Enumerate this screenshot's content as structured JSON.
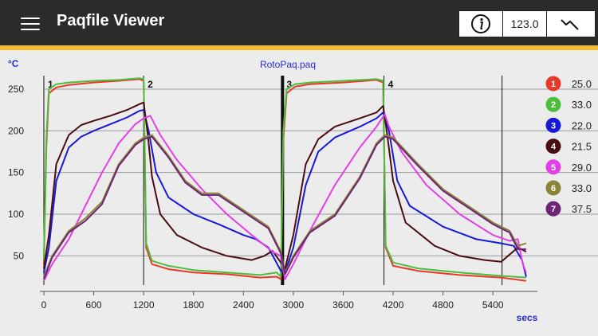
{
  "app": {
    "title": "Paqfile Viewer",
    "toolbar_value": "123.0"
  },
  "colors": {
    "header_bg": "#2b2b2b",
    "accent": "#f3bd2e"
  },
  "icons": {
    "menu": "hamburger-icon",
    "info": "info-icon",
    "trend": "trend-line-icon"
  },
  "chart_data": {
    "type": "line",
    "title": "RotoPaq.paq",
    "xlabel": "secs",
    "ylabel": "°C",
    "xlim": [
      0,
      5820
    ],
    "ylim": [
      15,
      270
    ],
    "x_ticks": [
      0,
      600,
      1200,
      1800,
      2400,
      3000,
      3600,
      4200,
      4800,
      5400
    ],
    "y_ticks": [
      50,
      100,
      150,
      200,
      250
    ],
    "grid": true,
    "legend_position": "right",
    "markers": [
      {
        "label": "1",
        "x": 0
      },
      {
        "label": "2",
        "x": 1200
      },
      {
        "label": "3",
        "x": 2870
      },
      {
        "label": "4",
        "x": 4090
      },
      {
        "label": "",
        "x": 5510
      }
    ],
    "separator_x": 2870,
    "series": [
      {
        "name": "1",
        "color": "#e8382a",
        "value": "25.0",
        "x": [
          0,
          30,
          60,
          150,
          300,
          600,
          900,
          1150,
          1200,
          1230,
          1300,
          1500,
          1800,
          2200,
          2600,
          2800,
          2850,
          2880,
          2920,
          3020,
          3200,
          3600,
          4000,
          4080,
          4110,
          4200,
          4500,
          5000,
          5500,
          5800
        ],
        "y": [
          40,
          180,
          245,
          252,
          255,
          258,
          260,
          262,
          260,
          60,
          40,
          34,
          30,
          28,
          24,
          25,
          22,
          190,
          245,
          253,
          256,
          258,
          261,
          258,
          60,
          38,
          32,
          27,
          24,
          20
        ]
      },
      {
        "name": "2",
        "color": "#4dbd3d",
        "value": "33.0",
        "x": [
          0,
          30,
          60,
          150,
          300,
          600,
          900,
          1150,
          1200,
          1230,
          1300,
          1500,
          1800,
          2200,
          2600,
          2800,
          2850,
          2880,
          2920,
          3020,
          3200,
          3600,
          4000,
          4080,
          4110,
          4200,
          4500,
          5000,
          5500,
          5800
        ],
        "y": [
          45,
          190,
          250,
          256,
          258,
          260,
          261,
          263,
          262,
          65,
          44,
          38,
          33,
          30,
          27,
          30,
          25,
          200,
          250,
          256,
          258,
          260,
          262,
          260,
          62,
          42,
          35,
          30,
          26,
          24
        ]
      },
      {
        "name": "3",
        "color": "#1818d8",
        "value": "22.0",
        "x": [
          0,
          60,
          150,
          300,
          450,
          600,
          800,
          1000,
          1150,
          1200,
          1260,
          1350,
          1500,
          1800,
          2100,
          2400,
          2550,
          2700,
          2850,
          2900,
          3000,
          3150,
          3300,
          3500,
          3800,
          4000,
          4080,
          4150,
          4250,
          4400,
          4800,
          5200,
          5500,
          5650,
          5750,
          5800
        ],
        "y": [
          30,
          60,
          140,
          180,
          193,
          200,
          208,
          216,
          224,
          225,
          200,
          150,
          120,
          100,
          88,
          75,
          70,
          60,
          32,
          30,
          60,
          135,
          175,
          192,
          205,
          215,
          222,
          200,
          140,
          110,
          85,
          70,
          65,
          62,
          45,
          25
        ]
      },
      {
        "name": "4",
        "color": "#4a0d12",
        "value": "21.5",
        "x": [
          0,
          60,
          150,
          300,
          450,
          600,
          800,
          1000,
          1150,
          1200,
          1250,
          1300,
          1400,
          1600,
          1900,
          2200,
          2500,
          2650,
          2750,
          2850,
          2900,
          3000,
          3150,
          3300,
          3500,
          3800,
          4000,
          4080,
          4130,
          4200,
          4350,
          4700,
          5000,
          5300,
          5500,
          5700,
          5800
        ],
        "y": [
          35,
          75,
          160,
          195,
          207,
          212,
          218,
          225,
          232,
          234,
          195,
          145,
          100,
          75,
          60,
          50,
          45,
          50,
          56,
          42,
          35,
          75,
          160,
          190,
          205,
          215,
          222,
          230,
          195,
          140,
          90,
          62,
          50,
          45,
          43,
          60,
          55
        ]
      },
      {
        "name": "5",
        "color": "#e33ee8",
        "value": "29.0",
        "x": [
          0,
          100,
          300,
          500,
          700,
          900,
          1100,
          1200,
          1280,
          1400,
          1600,
          1900,
          2200,
          2500,
          2750,
          2850,
          2900,
          3000,
          3200,
          3500,
          3800,
          4000,
          4100,
          4150,
          4300,
          4600,
          5000,
          5400,
          5600,
          5700,
          5760,
          5800
        ],
        "y": [
          20,
          40,
          70,
          110,
          150,
          185,
          208,
          215,
          218,
          195,
          165,
          130,
          100,
          75,
          55,
          50,
          22,
          40,
          80,
          135,
          180,
          205,
          220,
          205,
          175,
          135,
          100,
          75,
          68,
          70,
          40,
          30
        ]
      },
      {
        "name": "6",
        "color": "#8a8536",
        "value": "33.0",
        "x": [
          0,
          100,
          300,
          500,
          700,
          900,
          1100,
          1200,
          1300,
          1500,
          1700,
          1900,
          2100,
          2400,
          2700,
          2850,
          2900,
          3000,
          3200,
          3500,
          3800,
          4000,
          4100,
          4200,
          4500,
          4800,
          5100,
          5400,
          5600,
          5700,
          5800
        ],
        "y": [
          25,
          50,
          80,
          95,
          115,
          160,
          185,
          192,
          195,
          170,
          140,
          125,
          125,
          105,
          85,
          55,
          30,
          50,
          80,
          100,
          145,
          185,
          195,
          192,
          160,
          130,
          110,
          90,
          80,
          62,
          65
        ]
      },
      {
        "name": "7",
        "color": "#6e2576",
        "value": "37.5",
        "x": [
          0,
          100,
          300,
          500,
          700,
          900,
          1100,
          1200,
          1300,
          1500,
          1700,
          1900,
          2100,
          2400,
          2700,
          2850,
          2900,
          3000,
          3200,
          3500,
          3800,
          4000,
          4100,
          4200,
          4500,
          4800,
          5100,
          5400,
          5600,
          5700,
          5800
        ],
        "y": [
          22,
          48,
          78,
          92,
          112,
          158,
          183,
          190,
          193,
          168,
          138,
          123,
          123,
          103,
          83,
          53,
          28,
          48,
          78,
          98,
          143,
          183,
          193,
          190,
          158,
          128,
          108,
          88,
          78,
          58,
          58
        ]
      }
    ]
  }
}
